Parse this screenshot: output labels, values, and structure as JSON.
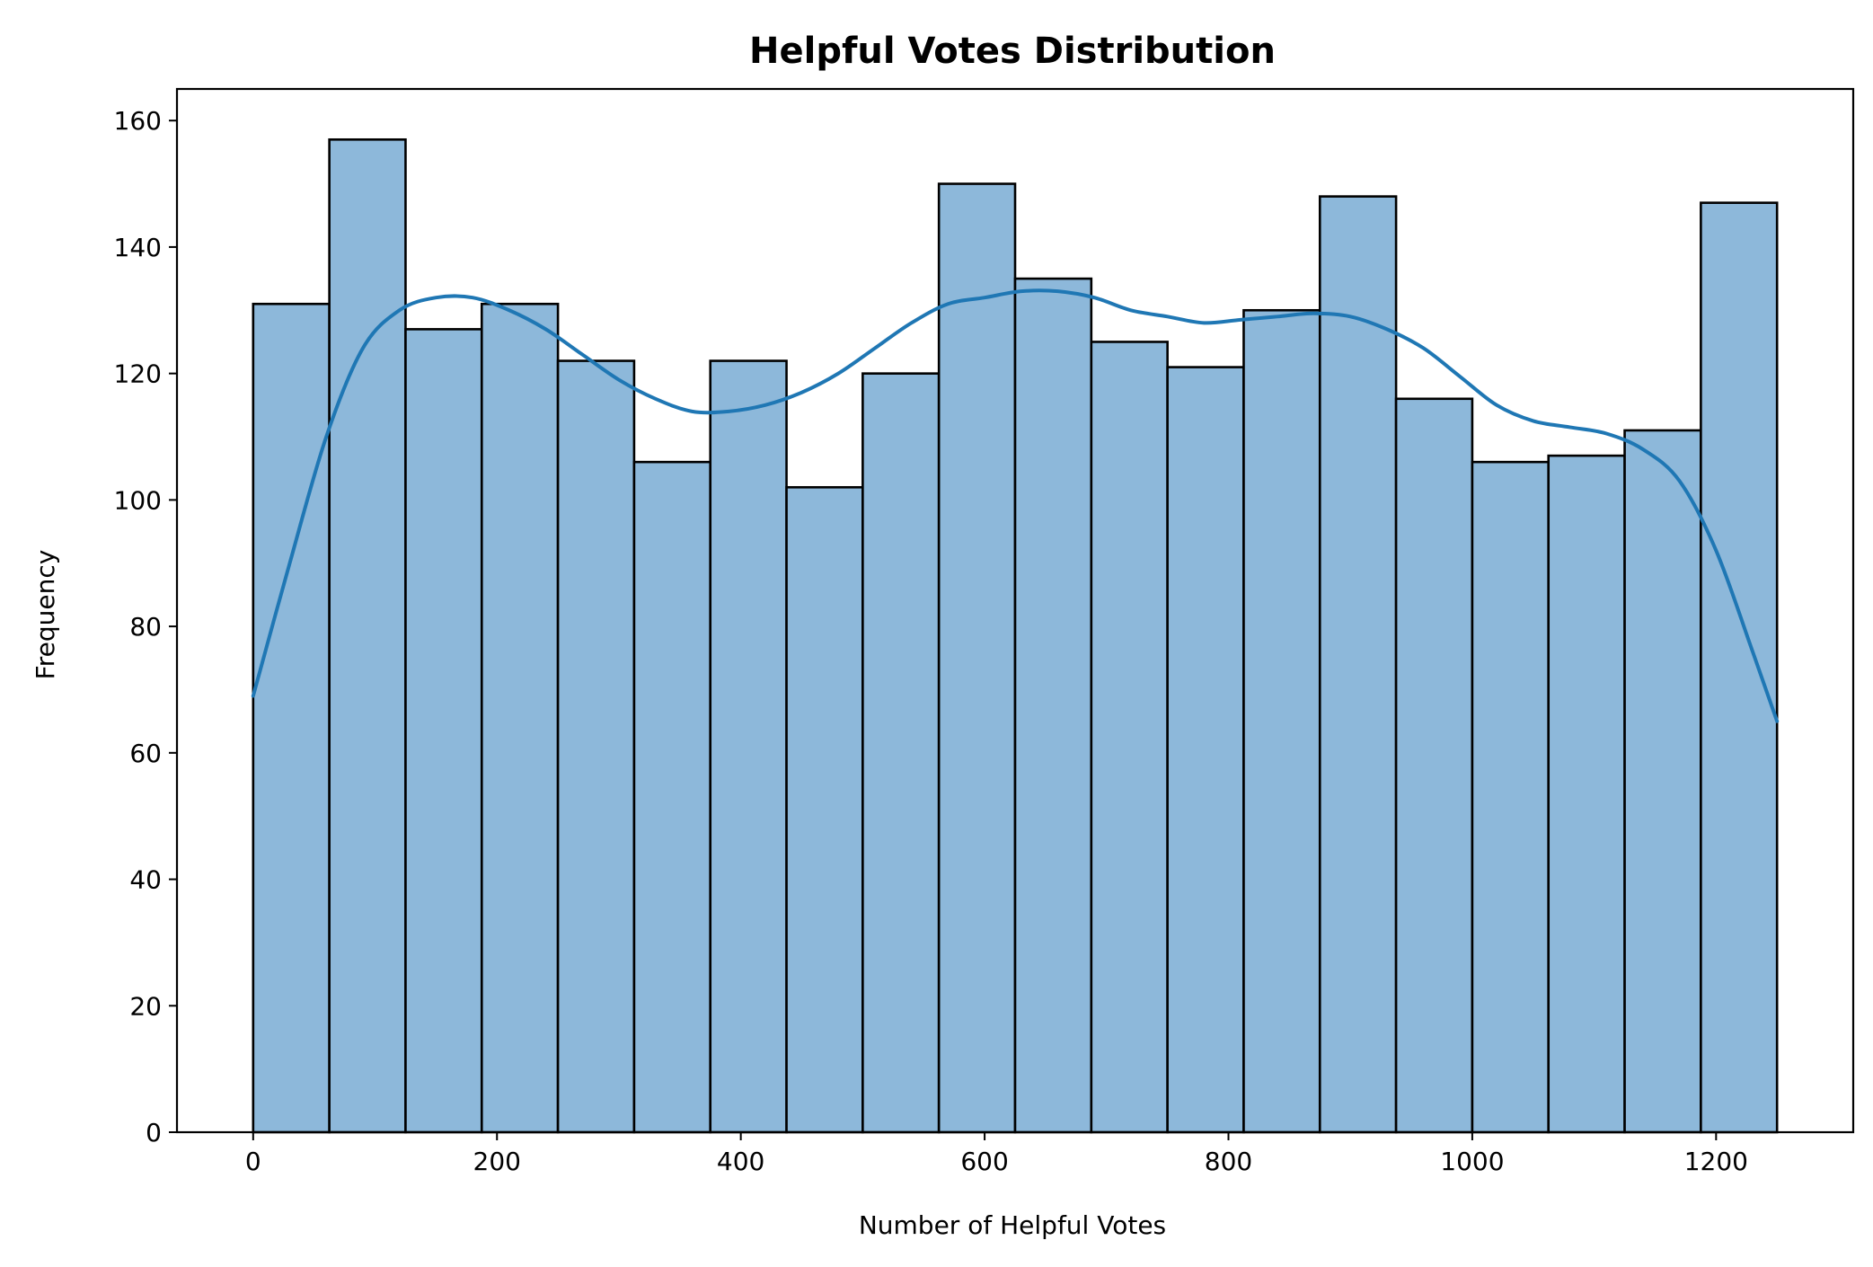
{
  "chart_data": {
    "type": "bar",
    "subtype": "histogram-with-kde",
    "title": "Helpful Votes Distribution",
    "xlabel": "Number of Helpful Votes",
    "ylabel": "Frequency",
    "xlim": [
      -62.5,
      1312.5
    ],
    "ylim": [
      0,
      165
    ],
    "xticks": [
      0,
      200,
      400,
      600,
      800,
      1000,
      1200
    ],
    "yticks": [
      0,
      20,
      40,
      60,
      80,
      100,
      120,
      140,
      160
    ],
    "bins": [
      {
        "x0": 0,
        "x1": 62.5,
        "count": 131
      },
      {
        "x0": 62.5,
        "x1": 125,
        "count": 157
      },
      {
        "x0": 125,
        "x1": 187.5,
        "count": 127
      },
      {
        "x0": 187.5,
        "x1": 250,
        "count": 131
      },
      {
        "x0": 250,
        "x1": 312.5,
        "count": 122
      },
      {
        "x0": 312.5,
        "x1": 375,
        "count": 106
      },
      {
        "x0": 375,
        "x1": 437.5,
        "count": 122
      },
      {
        "x0": 437.5,
        "x1": 500,
        "count": 102
      },
      {
        "x0": 500,
        "x1": 562.5,
        "count": 120
      },
      {
        "x0": 562.5,
        "x1": 625,
        "count": 150
      },
      {
        "x0": 625,
        "x1": 687.5,
        "count": 135
      },
      {
        "x0": 687.5,
        "x1": 750,
        "count": 125
      },
      {
        "x0": 750,
        "x1": 812.5,
        "count": 121
      },
      {
        "x0": 812.5,
        "x1": 875,
        "count": 130
      },
      {
        "x0": 875,
        "x1": 937.5,
        "count": 148
      },
      {
        "x0": 937.5,
        "x1": 1000,
        "count": 116
      },
      {
        "x0": 1000,
        "x1": 1062.5,
        "count": 106
      },
      {
        "x0": 1062.5,
        "x1": 1125,
        "count": 107
      },
      {
        "x0": 1125,
        "x1": 1187.5,
        "count": 111
      },
      {
        "x0": 1187.5,
        "x1": 1250,
        "count": 147
      }
    ],
    "kde": {
      "x": [
        0,
        30,
        60,
        90,
        120,
        150,
        180,
        210,
        240,
        270,
        300,
        330,
        360,
        390,
        420,
        450,
        480,
        510,
        540,
        570,
        600,
        630,
        660,
        690,
        720,
        750,
        780,
        810,
        840,
        870,
        900,
        930,
        960,
        990,
        1020,
        1050,
        1080,
        1110,
        1140,
        1170,
        1200,
        1230,
        1250
      ],
      "y": [
        69,
        90,
        110,
        124,
        130,
        132,
        132,
        130,
        127,
        123,
        119,
        116,
        114,
        114,
        115,
        117,
        120,
        124,
        128,
        131,
        132,
        133,
        133,
        132,
        130,
        129,
        128,
        128.5,
        129,
        129.5,
        129,
        127,
        124,
        119.5,
        115,
        112.5,
        111.5,
        110.5,
        108,
        103,
        92,
        76,
        65
      ]
    },
    "colors": {
      "bar_fill": "#8db8da",
      "bar_edge": "#000000",
      "kde_line": "#1f77b4"
    },
    "legend": "none",
    "grid": false
  }
}
